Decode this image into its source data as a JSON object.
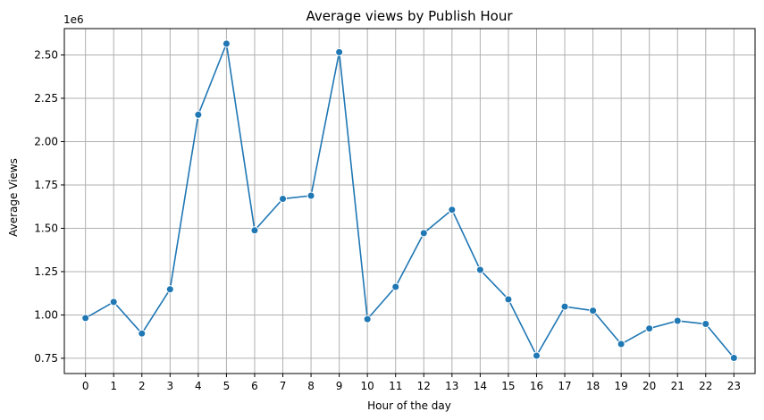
{
  "chart_data": {
    "type": "line",
    "title": "Average views by Publish Hour",
    "xlabel": "Hour of the day",
    "ylabel": "Average Views",
    "y_multiplier_label": "1e6",
    "x": [
      0,
      1,
      2,
      3,
      4,
      5,
      6,
      7,
      8,
      9,
      10,
      11,
      12,
      13,
      14,
      15,
      16,
      17,
      18,
      19,
      20,
      21,
      22,
      23
    ],
    "x_tick_labels": [
      "0",
      "1",
      "2",
      "3",
      "4",
      "5",
      "6",
      "7",
      "8",
      "9",
      "10",
      "11",
      "12",
      "13",
      "14",
      "15",
      "16",
      "17",
      "18",
      "19",
      "20",
      "21",
      "22",
      "23"
    ],
    "y_ticks": [
      0.75,
      1.0,
      1.25,
      1.5,
      1.75,
      2.0,
      2.25,
      2.5
    ],
    "y_tick_labels": [
      "0.75",
      "1.00",
      "1.25",
      "1.50",
      "1.75",
      "2.00",
      "2.25",
      "2.50"
    ],
    "xlim": [
      -0.75,
      23.75
    ],
    "ylim": [
      0.662,
      2.652
    ],
    "grid": true,
    "series": [
      {
        "values": [
          0.982,
          1.075,
          0.893,
          1.148,
          2.155,
          2.565,
          1.488,
          1.67,
          1.688,
          2.516,
          0.976,
          1.162,
          1.472,
          1.607,
          1.26,
          1.09,
          0.765,
          1.048,
          1.025,
          0.832,
          0.922,
          0.966,
          0.948,
          0.752
        ],
        "color": "#1f77b4",
        "marker": "circle"
      }
    ]
  }
}
